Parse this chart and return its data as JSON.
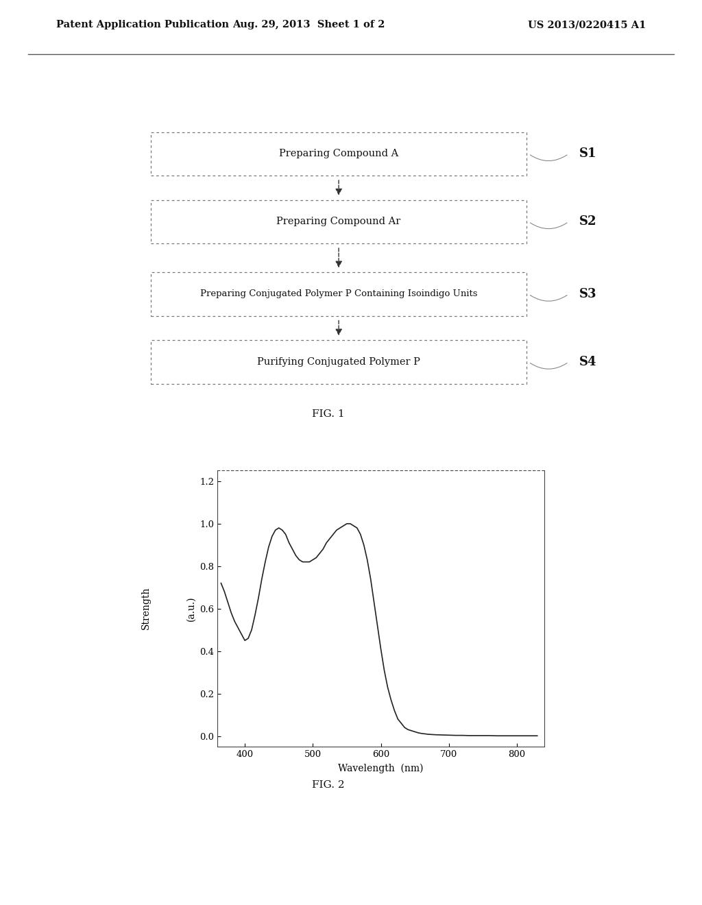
{
  "header_left": "Patent Application Publication",
  "header_mid": "Aug. 29, 2013  Sheet 1 of 2",
  "header_right": "US 2013/0220415 A1",
  "flowchart_steps": [
    {
      "label": "Preparing Compound A",
      "step": "S1"
    },
    {
      "label": "Preparing Compound Ar",
      "step": "S2"
    },
    {
      "label": "Preparing Conjugated Polymer P Containing Isoindigo Units",
      "step": "S3"
    },
    {
      "label": "Purifying Conjugated Polymer P",
      "step": "S4"
    }
  ],
  "fig1_label": "FIG. 1",
  "fig2_label": "FIG. 2",
  "plot_xlabel": "Wavelength  (nm)",
  "plot_ylabel": "(a.u.)",
  "plot_ylabel2": "Strength",
  "plot_xlim": [
    360,
    840
  ],
  "plot_ylim": [
    -0.05,
    1.25
  ],
  "plot_xticks": [
    400,
    500,
    600,
    700,
    800
  ],
  "plot_yticks": [
    0.0,
    0.2,
    0.4,
    0.6,
    0.8,
    1.0,
    1.2
  ],
  "curve_color": "#222222",
  "curve_x": [
    365,
    370,
    375,
    380,
    385,
    390,
    395,
    400,
    405,
    410,
    415,
    420,
    425,
    430,
    435,
    440,
    445,
    450,
    455,
    460,
    465,
    470,
    475,
    480,
    485,
    490,
    495,
    500,
    505,
    510,
    515,
    520,
    525,
    530,
    535,
    540,
    545,
    550,
    555,
    560,
    565,
    570,
    575,
    580,
    585,
    590,
    595,
    600,
    605,
    610,
    615,
    620,
    625,
    630,
    635,
    640,
    645,
    650,
    655,
    660,
    670,
    680,
    690,
    700,
    710,
    720,
    730,
    740,
    750,
    760,
    770,
    780,
    790,
    800,
    810,
    820,
    830
  ],
  "curve_y": [
    0.72,
    0.68,
    0.63,
    0.58,
    0.54,
    0.51,
    0.48,
    0.45,
    0.46,
    0.5,
    0.57,
    0.65,
    0.74,
    0.82,
    0.89,
    0.94,
    0.97,
    0.98,
    0.97,
    0.95,
    0.91,
    0.88,
    0.85,
    0.83,
    0.82,
    0.82,
    0.82,
    0.83,
    0.84,
    0.86,
    0.88,
    0.91,
    0.93,
    0.95,
    0.97,
    0.98,
    0.99,
    1.0,
    1.0,
    0.99,
    0.98,
    0.95,
    0.9,
    0.83,
    0.74,
    0.63,
    0.52,
    0.41,
    0.31,
    0.23,
    0.17,
    0.12,
    0.08,
    0.06,
    0.04,
    0.03,
    0.025,
    0.02,
    0.015,
    0.012,
    0.008,
    0.006,
    0.005,
    0.004,
    0.003,
    0.003,
    0.002,
    0.002,
    0.002,
    0.002,
    0.001,
    0.001,
    0.001,
    0.001,
    0.001,
    0.001,
    0.001
  ],
  "background_color": "#ffffff",
  "box_color": "#777777",
  "arrow_color": "#333333"
}
